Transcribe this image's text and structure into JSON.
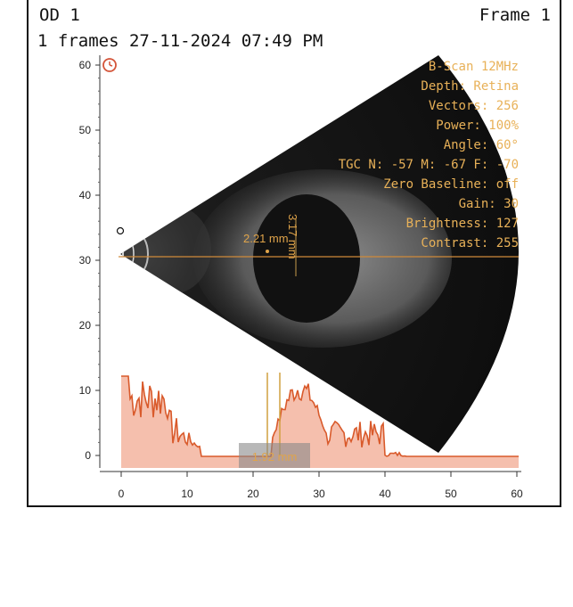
{
  "header": {
    "eye": "OD 1",
    "frame": "Frame 1",
    "info": "1 frames 27-11-2024 07:49 PM"
  },
  "scan_params": [
    "B-Scan 12MHz",
    "Depth: Retina",
    "Vectors: 256",
    "Power: 100%",
    "Angle: 60°",
    "TGC N: -57 M: -67 F: -70",
    "Zero Baseline: off",
    "Gain: 30",
    "Brightness: 127",
    "Contrast: 255"
  ],
  "measurements": {
    "width": "2.21 mm",
    "height": "3.17 mm",
    "amplitude_gap": "1.92 mm"
  },
  "axes": {
    "x_ticks": [
      "0",
      "10",
      "20",
      "30",
      "40",
      "50",
      "60"
    ],
    "y_ticks": [
      "60",
      "50",
      "40",
      "30",
      "20",
      "10",
      "0"
    ]
  },
  "colors": {
    "accent": "#e8b158",
    "amplitude_line": "#d95a2b",
    "amplitude_fill": "#f4b8a4",
    "scan_bg": "#1a1a1a"
  },
  "icons": {
    "timer": "clock-icon"
  }
}
